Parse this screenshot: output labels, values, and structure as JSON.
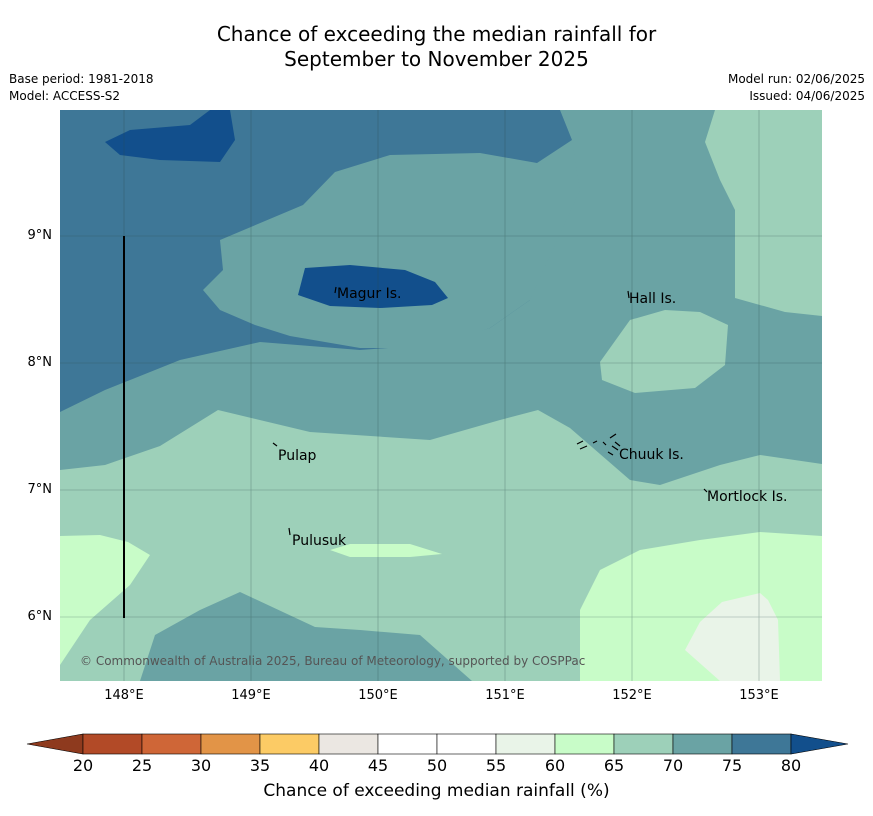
{
  "title_line1": "Chance of exceeding the median rainfall for",
  "title_line2": "September to November 2025",
  "meta_left": {
    "base_period": "Base period: 1981-2018",
    "model": "Model: ACCESS-S2"
  },
  "meta_right": {
    "model_run": "Model run: 02/06/2025",
    "issued": "Issued: 04/06/2025"
  },
  "map": {
    "x_ticks": [
      "148°E",
      "149°E",
      "150°E",
      "151°E",
      "152°E",
      "153°E"
    ],
    "y_ticks": [
      "9°N",
      "8°N",
      "7°N",
      "6°N"
    ],
    "places": [
      "Magur Is.",
      "Hall Is.",
      "Pulap",
      "Chuuk Is.",
      "Mortlock Is.",
      "Pulusuk"
    ],
    "credit": "© Commonwealth of Australia 2025, Bureau of Meteorology, supported by COSPPac"
  },
  "colorbar": {
    "ticks": [
      "20",
      "25",
      "30",
      "35",
      "40",
      "45",
      "50",
      "55",
      "60",
      "65",
      "70",
      "75",
      "80"
    ],
    "colors": [
      "#b24a27",
      "#cf6637",
      "#e29447",
      "#fccb65",
      "#ebe7e2",
      "#ffffff",
      "#ffffff",
      "#e9f4e8",
      "#c8fcc8",
      "#9dd0b9",
      "#6aa3a4",
      "#3e7797"
    ],
    "under_color": "#8e3a1e",
    "over_color": "#124f8c",
    "label": "Chance of exceeding median rainfall (%)"
  }
}
